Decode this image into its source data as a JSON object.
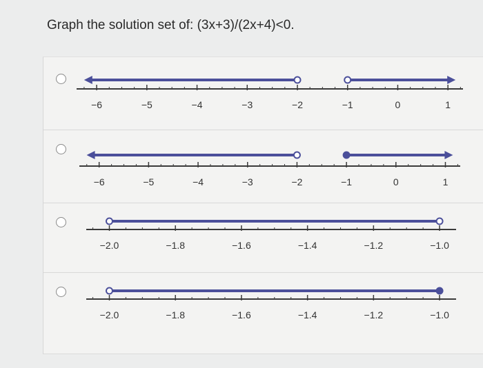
{
  "question": "Graph the solution set of: (3x+3)/(2x+4)<0.",
  "colors": {
    "line": "#4b4f9a",
    "axis": "#3a3a3a"
  },
  "options": [
    {
      "id": "A",
      "ticks": [
        -6,
        -5,
        -4,
        -3,
        -2,
        -1,
        0,
        1
      ],
      "tick_labels": [
        "−6",
        "−5",
        "−4",
        "−3",
        "−2",
        "−1",
        "0",
        "1"
      ],
      "minor_step": 0.25,
      "domain": [
        -6.4,
        1.3
      ],
      "segments": [
        {
          "from": "-inf",
          "to": -2,
          "to_closed": false
        },
        {
          "from": -1,
          "to": "inf",
          "from_closed": false
        }
      ]
    },
    {
      "id": "B",
      "ticks": [
        -6,
        -5,
        -4,
        -3,
        -2,
        -1,
        0,
        1
      ],
      "tick_labels": [
        "−6",
        "−5",
        "−4",
        "−3",
        "−2",
        "−1",
        "0",
        "1"
      ],
      "minor_step": 0.25,
      "domain": [
        -6.4,
        1.3
      ],
      "segments": [
        {
          "from": "-inf",
          "to": -2,
          "to_closed": false
        },
        {
          "from": -1,
          "to": "inf",
          "from_closed": true
        }
      ]
    },
    {
      "id": "C",
      "ticks": [
        -2.0,
        -1.8,
        -1.6,
        -1.4,
        -1.2,
        -1.0
      ],
      "tick_labels": [
        "−2.0",
        "−1.8",
        "−1.6",
        "−1.4",
        "−1.2",
        "−1.0"
      ],
      "minor_step": 0.05,
      "domain": [
        -2.07,
        -0.95
      ],
      "segments": [
        {
          "from": -2,
          "to": -1,
          "from_closed": false,
          "to_closed": false
        }
      ]
    },
    {
      "id": "D",
      "ticks": [
        -2.0,
        -1.8,
        -1.6,
        -1.4,
        -1.2,
        -1.0
      ],
      "tick_labels": [
        "−2.0",
        "−1.8",
        "−1.6",
        "−1.4",
        "−1.2",
        "−1.0"
      ],
      "minor_step": 0.05,
      "domain": [
        -2.07,
        -0.95
      ],
      "segments": [
        {
          "from": -2,
          "to": -1,
          "from_closed": false,
          "to_closed": true
        }
      ]
    }
  ]
}
